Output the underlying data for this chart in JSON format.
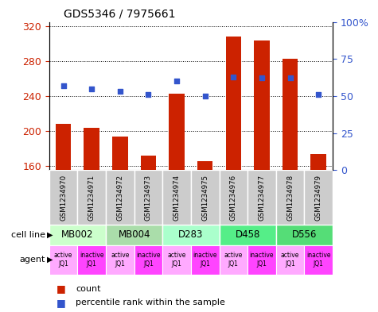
{
  "title": "GDS5346 / 7975661",
  "gsm_labels": [
    "GSM1234970",
    "GSM1234971",
    "GSM1234972",
    "GSM1234973",
    "GSM1234974",
    "GSM1234975",
    "GSM1234976",
    "GSM1234977",
    "GSM1234978",
    "GSM1234979"
  ],
  "count_values": [
    208,
    203,
    193,
    172,
    243,
    165,
    308,
    304,
    283,
    173
  ],
  "percentile_values": [
    57,
    55,
    53,
    51,
    60,
    50,
    63,
    62,
    62,
    51
  ],
  "ylim_left": [
    155,
    325
  ],
  "ylim_right": [
    0,
    100
  ],
  "yticks_left": [
    160,
    200,
    240,
    280,
    320
  ],
  "yticks_right": [
    0,
    25,
    50,
    75,
    100
  ],
  "bar_color": "#cc2200",
  "dot_color": "#3355cc",
  "cell_line_groups": [
    {
      "label": "MB002",
      "start": 0,
      "end": 2,
      "color": "#ccffcc"
    },
    {
      "label": "MB004",
      "start": 2,
      "end": 4,
      "color": "#aaddaa"
    },
    {
      "label": "D283",
      "start": 4,
      "end": 6,
      "color": "#aaffcc"
    },
    {
      "label": "D458",
      "start": 6,
      "end": 8,
      "color": "#55ee88"
    },
    {
      "label": "D556",
      "start": 8,
      "end": 10,
      "color": "#55dd77"
    }
  ],
  "agent_labels": [
    "active\nJQ1",
    "inactive\nJQ1",
    "active\nJQ1",
    "inactive\nJQ1",
    "active\nJQ1",
    "inactive\nJQ1",
    "active\nJQ1",
    "inactive\nJQ1",
    "active\nJQ1",
    "inactive\nJQ1"
  ],
  "agent_active_color": "#ffaaff",
  "agent_inactive_color": "#ff44ff",
  "left_axis_color": "#cc2200",
  "right_axis_color": "#3355cc",
  "gsm_box_color": "#cccccc",
  "legend_count_label": "count",
  "legend_pct_label": "percentile rank within the sample",
  "cell_line_row_label": "cell line",
  "agent_row_label": "agent"
}
